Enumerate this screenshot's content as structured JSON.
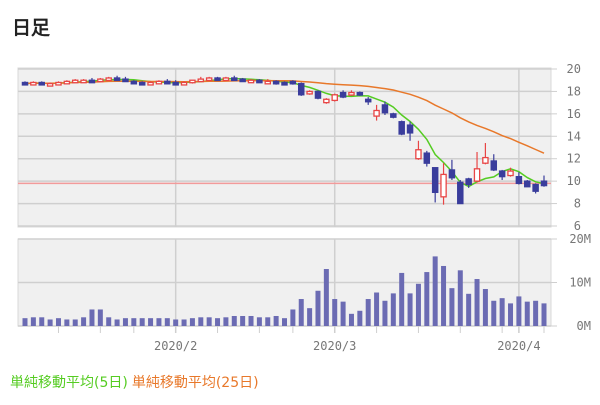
{
  "title": "日足",
  "legend": [
    {
      "label": "単純移動平均(5日)",
      "color": "#55cc22"
    },
    {
      "label": "単純移動平均(25日)",
      "color": "#e8782a"
    }
  ],
  "colors": {
    "up": "#e84545",
    "down": "#3a3d9c",
    "volume": "#6b6bb3",
    "reference_line": "#f29a9a",
    "panel_bg": "#f0f0f0",
    "grid": "#cfcfcf"
  },
  "chart_data": {
    "type": "candlestick",
    "price_axis": {
      "ylim": [
        6,
        20
      ],
      "ticks": [
        "6",
        "8",
        "10",
        "12",
        "14",
        "16",
        "18",
        "20"
      ]
    },
    "volume_axis": {
      "ylim": [
        0,
        20
      ],
      "unit": "M",
      "ticks": [
        "0M",
        "10M",
        "20M"
      ]
    },
    "x_ticks": [
      {
        "label": "2020/2",
        "index": 18
      },
      {
        "label": "2020/3",
        "index": 37
      },
      {
        "label": "2020/4",
        "index": 59
      }
    ],
    "reference_line": 9.8,
    "moving_averages": [
      5,
      25
    ],
    "ohlc": [
      [
        18.8,
        18.9,
        18.6,
        18.7
      ],
      [
        18.7,
        18.9,
        18.6,
        18.8
      ],
      [
        18.8,
        18.9,
        18.6,
        18.7
      ],
      [
        18.7,
        18.8,
        18.6,
        18.7
      ],
      [
        18.7,
        18.9,
        18.6,
        18.8
      ],
      [
        18.8,
        19.0,
        18.7,
        18.9
      ],
      [
        18.9,
        19.1,
        18.8,
        19.0
      ],
      [
        18.9,
        19.1,
        18.8,
        19.0
      ],
      [
        19.0,
        19.2,
        18.8,
        18.9
      ],
      [
        18.9,
        19.2,
        18.8,
        19.1
      ],
      [
        19.1,
        19.3,
        19.0,
        19.2
      ],
      [
        19.2,
        19.4,
        19.0,
        19.1
      ],
      [
        19.1,
        19.3,
        18.9,
        19.0
      ],
      [
        18.9,
        19.0,
        18.7,
        18.8
      ],
      [
        18.8,
        18.9,
        18.6,
        18.7
      ],
      [
        18.7,
        18.9,
        18.6,
        18.8
      ],
      [
        18.8,
        19.0,
        18.7,
        18.9
      ],
      [
        18.9,
        19.1,
        18.7,
        18.8
      ],
      [
        18.8,
        19.0,
        18.6,
        18.7
      ],
      [
        18.7,
        18.9,
        18.6,
        18.8
      ],
      [
        18.8,
        19.0,
        18.7,
        19.0
      ],
      [
        19.0,
        19.3,
        18.9,
        19.1
      ],
      [
        19.1,
        19.3,
        19.0,
        19.2
      ],
      [
        19.2,
        19.3,
        19.0,
        19.1
      ],
      [
        19.1,
        19.3,
        19.0,
        19.2
      ],
      [
        19.2,
        19.4,
        19.1,
        19.1
      ],
      [
        19.1,
        19.2,
        18.9,
        19.0
      ],
      [
        19.0,
        19.1,
        18.8,
        19.0
      ],
      [
        19.0,
        19.1,
        18.8,
        18.9
      ],
      [
        18.9,
        19.1,
        18.8,
        18.9
      ],
      [
        18.9,
        19.0,
        18.6,
        18.7
      ],
      [
        18.8,
        18.9,
        18.6,
        18.7
      ],
      [
        18.9,
        19.0,
        18.6,
        18.7
      ],
      [
        18.7,
        18.8,
        17.6,
        17.7
      ],
      [
        17.8,
        18.1,
        17.7,
        18.0
      ],
      [
        18.0,
        18.1,
        17.3,
        17.4
      ],
      [
        17.0,
        17.4,
        16.9,
        17.3
      ],
      [
        17.2,
        17.8,
        17.1,
        17.7
      ],
      [
        17.9,
        18.1,
        17.4,
        17.5
      ],
      [
        17.7,
        18.1,
        17.6,
        17.9
      ],
      [
        17.9,
        18.0,
        17.6,
        17.7
      ],
      [
        17.3,
        17.5,
        16.8,
        17.2
      ],
      [
        15.8,
        16.8,
        15.4,
        16.3
      ],
      [
        16.8,
        17.1,
        15.9,
        16.1
      ],
      [
        16.0,
        16.1,
        15.6,
        15.7
      ],
      [
        15.3,
        15.4,
        14.1,
        14.2
      ],
      [
        15.0,
        15.3,
        13.6,
        14.3
      ],
      [
        12.0,
        13.6,
        11.9,
        12.8
      ],
      [
        12.5,
        12.7,
        11.3,
        11.6
      ],
      [
        11.2,
        11.2,
        8.1,
        9.0
      ],
      [
        8.6,
        11.6,
        7.9,
        10.6
      ],
      [
        11.0,
        11.9,
        10.1,
        10.3
      ],
      [
        9.9,
        10.1,
        8.0,
        8.0
      ],
      [
        10.2,
        10.3,
        9.4,
        9.7
      ],
      [
        10.0,
        12.6,
        9.9,
        11.1
      ],
      [
        11.6,
        13.4,
        11.5,
        12.1
      ],
      [
        11.8,
        12.4,
        10.9,
        11.0
      ],
      [
        10.9,
        11.0,
        10.1,
        10.4
      ],
      [
        10.5,
        11.2,
        10.4,
        10.9
      ],
      [
        10.4,
        10.8,
        9.7,
        9.8
      ],
      [
        10.0,
        10.1,
        9.5,
        9.5
      ],
      [
        9.7,
        9.8,
        8.9,
        9.1
      ],
      [
        10.0,
        10.5,
        9.5,
        9.6
      ]
    ],
    "volume_millions": [
      1.8,
      2,
      2,
      1.5,
      1.8,
      1.5,
      1.5,
      2,
      3.8,
      3.8,
      2,
      1.5,
      1.8,
      1.8,
      1.8,
      1.8,
      1.8,
      1.8,
      1.5,
      1.5,
      1.8,
      2,
      2,
      1.8,
      2,
      2.3,
      2.3,
      2.3,
      2,
      2,
      2.3,
      1.8,
      3.8,
      6.2,
      4.1,
      8.1,
      13.1,
      6.2,
      5.6,
      2.8,
      3.5,
      6.2,
      7.7,
      5.8,
      7.5,
      12.2,
      7.5,
      9.7,
      12.4,
      16,
      13.8,
      8.7,
      12.8,
      7.4,
      10.8,
      8.5,
      5.8,
      6.4,
      5.2,
      6.8,
      5.6,
      5.8,
      5.2
    ]
  }
}
